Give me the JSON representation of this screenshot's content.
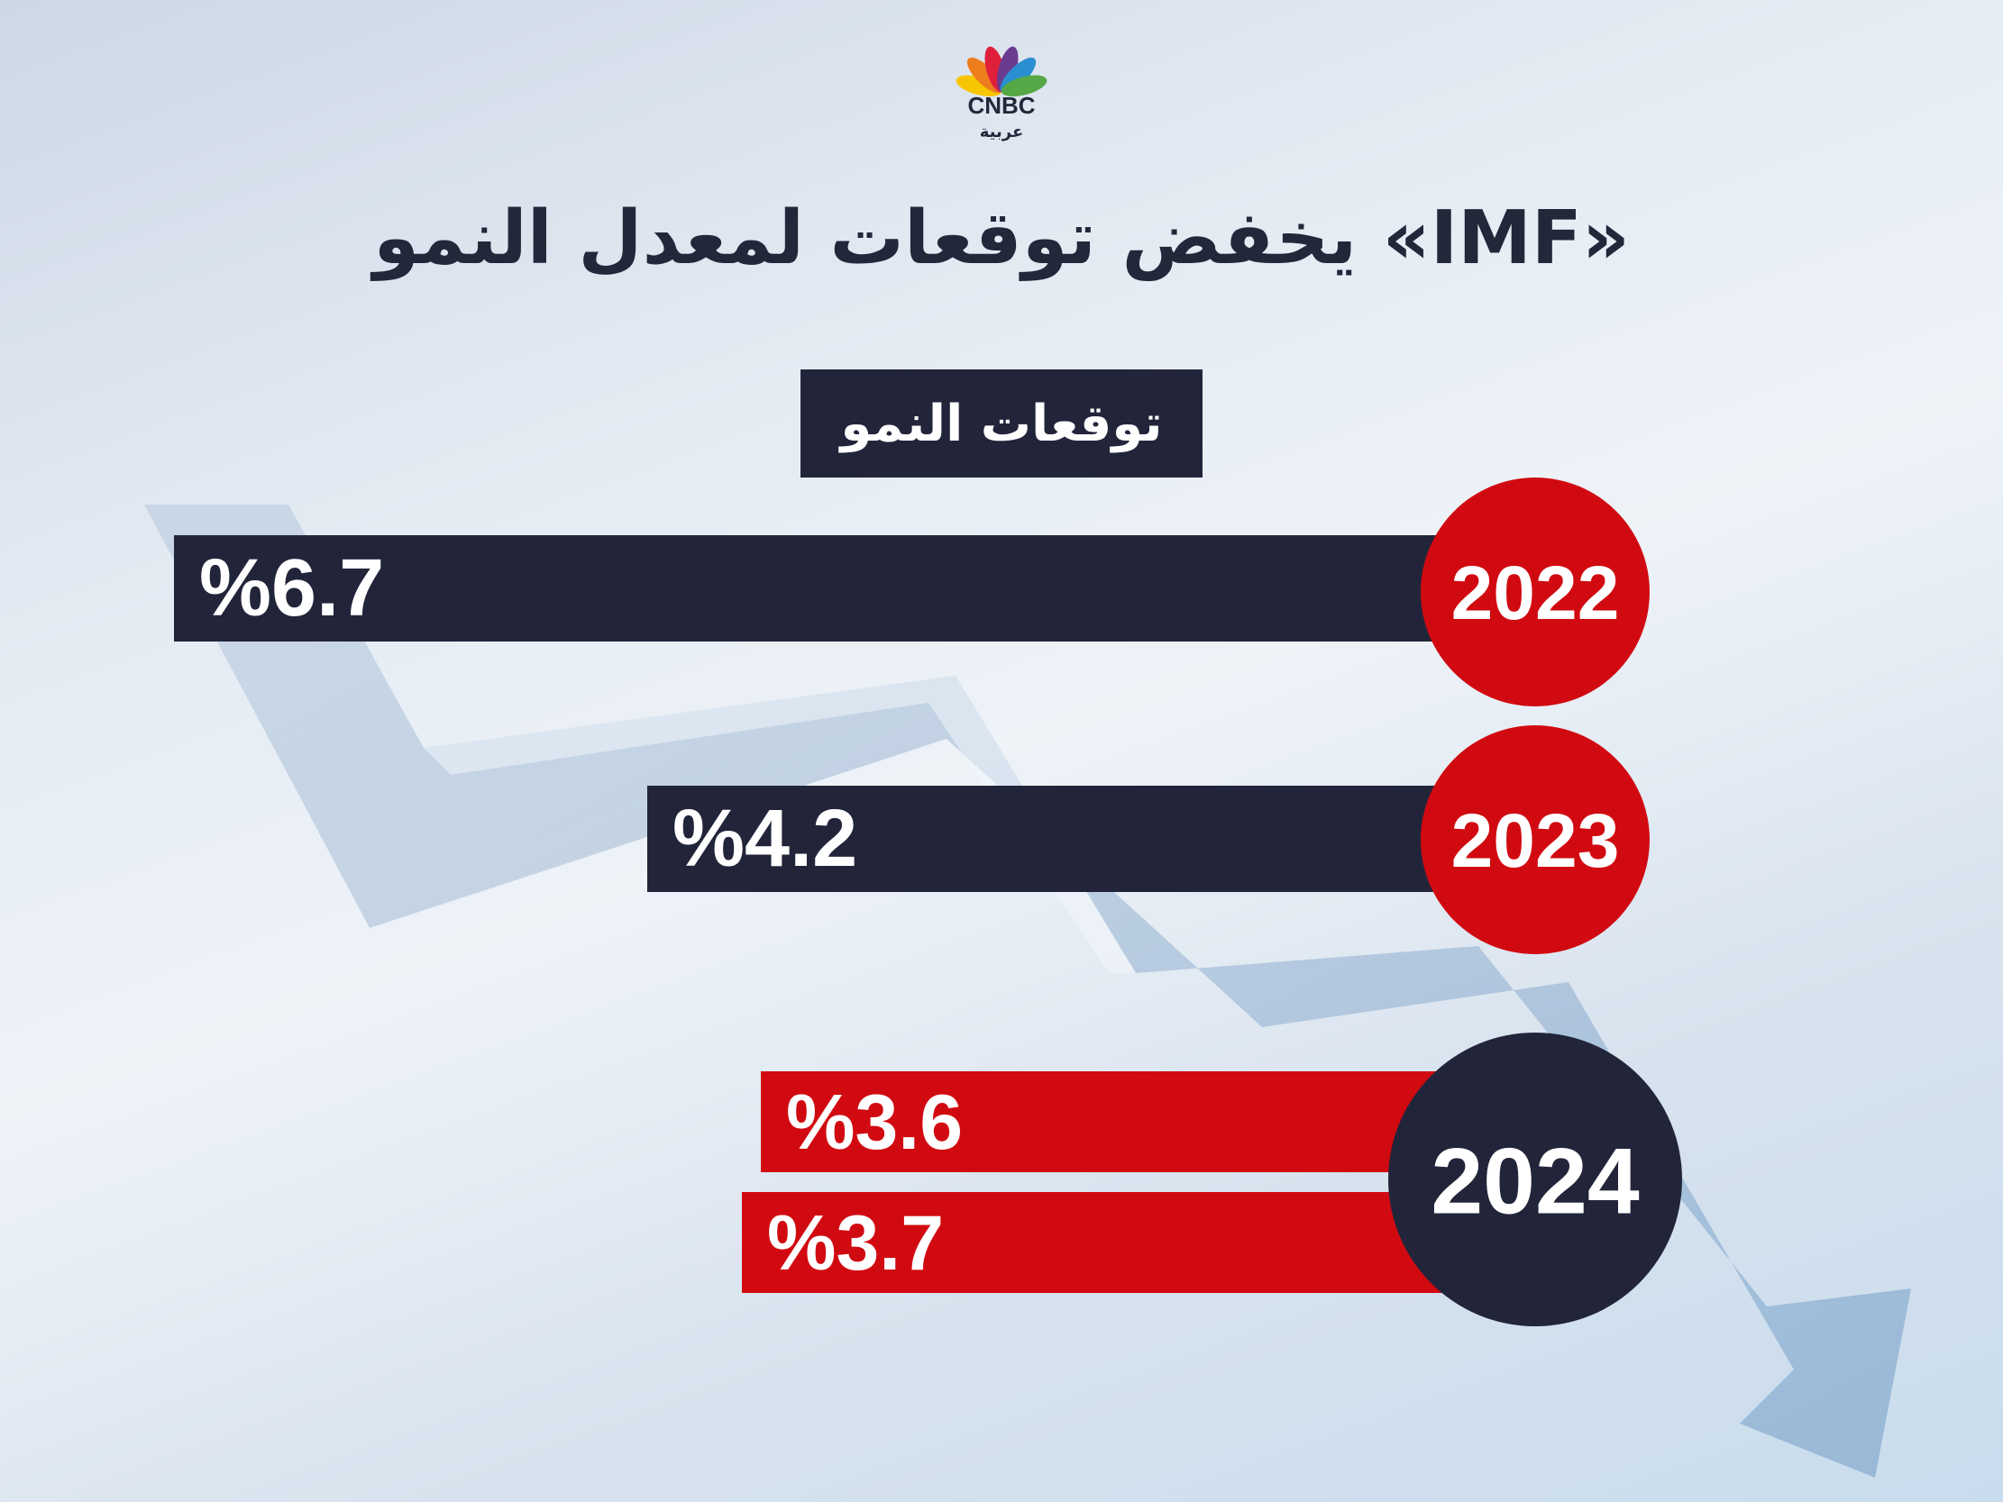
{
  "brand": {
    "logo_text": "CNBC",
    "logo_subtext": "عربية",
    "peacock_colors": [
      "#f7c600",
      "#ee7d1e",
      "#e0203b",
      "#6b3b8f",
      "#2a8fd0",
      "#55a845"
    ]
  },
  "title": "«IMF» يخفض توقعات لمعدل النمو",
  "label_box": "توقعات النمو",
  "colors": {
    "dark": "#22253a",
    "red": "#d10a11",
    "text": "#ffffff"
  },
  "chart_data": {
    "type": "bar",
    "orientation": "horizontal",
    "title": "«IMF» يخفض توقعات لمعدل النمو",
    "subtitle": "توقعات النمو",
    "unit": "%",
    "rows": [
      {
        "year": "2022",
        "values": [
          6.7
        ],
        "labels": [
          "%6.7"
        ]
      },
      {
        "year": "2023",
        "values": [
          4.2
        ],
        "labels": [
          "%4.2"
        ]
      },
      {
        "year": "2024",
        "values": [
          3.6,
          3.7
        ],
        "labels": [
          "%3.6",
          "%3.7"
        ]
      }
    ]
  }
}
